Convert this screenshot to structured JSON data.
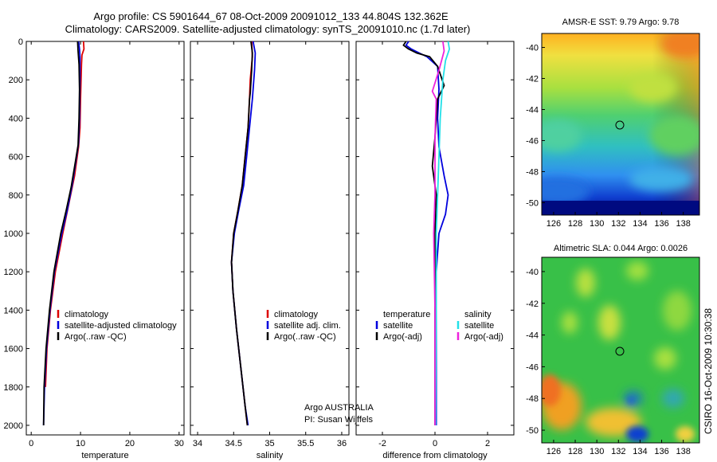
{
  "title_line1": "Argo profile: CS 5901644_67 08-Oct-2009 20091012_133 44.804S 132.362E",
  "title_line2": "Climatology: CARS2009. Satellite-adjusted climatology: synTS_20091010.nc (1.7d later)",
  "side_text": "CSIRO 16-Oct-2009 10:30:38",
  "credit_line1": "Argo AUSTRALIA",
  "credit_line2": "PI: Susan Wijffels",
  "colors": {
    "red": "#dd0000",
    "blue": "#0000dd",
    "black": "#000000",
    "cyan": "#22e0e8",
    "magenta": "#ee22dd"
  },
  "chart_data": [
    {
      "type": "line",
      "xlabel": "temperature",
      "xlim": [
        -1,
        31
      ],
      "ylim": [
        0,
        2050
      ],
      "xticks": [
        "0",
        "10",
        "20",
        "30"
      ],
      "yticks": [
        "0",
        "200",
        "400",
        "600",
        "800",
        "1000",
        "1200",
        "1400",
        "1600",
        "1800",
        "2000"
      ],
      "legend": [
        "climatology",
        "satellite-adjusted climatology",
        "Argo(..raw -QC)"
      ],
      "series": [
        {
          "name": "climatology",
          "color": "red",
          "points": [
            [
              10.6,
              0
            ],
            [
              10.7,
              40
            ],
            [
              10.3,
              70
            ],
            [
              10.2,
              120
            ],
            [
              10.0,
              300
            ],
            [
              9.9,
              450
            ],
            [
              9.6,
              550
            ],
            [
              8.8,
              700
            ],
            [
              7.6,
              850
            ],
            [
              6.4,
              1000
            ],
            [
              4.9,
              1200
            ],
            [
              3.9,
              1400
            ],
            [
              3.2,
              1600
            ],
            [
              2.9,
              1800
            ]
          ]
        },
        {
          "name": "satellite-adjusted climatology",
          "color": "blue",
          "points": [
            [
              9.6,
              0
            ],
            [
              9.8,
              40
            ],
            [
              9.9,
              80
            ],
            [
              9.9,
              200
            ],
            [
              9.8,
              400
            ],
            [
              9.6,
              530
            ],
            [
              9.2,
              600
            ],
            [
              8.3,
              750
            ],
            [
              7.3,
              880
            ],
            [
              6.2,
              1000
            ],
            [
              4.7,
              1200
            ],
            [
              3.8,
              1400
            ],
            [
              3.1,
              1600
            ],
            [
              2.7,
              1800
            ],
            [
              2.5,
              2000
            ]
          ]
        },
        {
          "name": "Argo(..raw -QC)",
          "color": "black",
          "points": [
            [
              9.4,
              0
            ],
            [
              9.5,
              50
            ],
            [
              9.7,
              120
            ],
            [
              9.8,
              250
            ],
            [
              9.7,
              400
            ],
            [
              9.5,
              540
            ],
            [
              9.0,
              620
            ],
            [
              8.1,
              760
            ],
            [
              7.1,
              880
            ],
            [
              6.0,
              1000
            ],
            [
              4.6,
              1200
            ],
            [
              3.7,
              1400
            ],
            [
              3.0,
              1600
            ],
            [
              2.6,
              1800
            ],
            [
              2.5,
              2000
            ]
          ]
        }
      ]
    },
    {
      "type": "line",
      "xlabel": "salinity",
      "xlim": [
        33.9,
        36.1
      ],
      "ylim": [
        0,
        2050
      ],
      "xticks": [
        "34",
        "34.5",
        "35",
        "35.5",
        "36"
      ],
      "legend": [
        "climatology",
        "satellite adj. clim.",
        "Argo(..raw -QC)"
      ],
      "series": [
        {
          "name": "climatology",
          "color": "red",
          "points": [
            [
              34.75,
              0
            ],
            [
              34.76,
              80
            ],
            [
              34.73,
              200
            ],
            [
              34.72,
              300
            ],
            [
              34.7,
              450
            ],
            [
              34.66,
              600
            ],
            [
              34.62,
              750
            ],
            [
              34.56,
              880
            ],
            [
              34.5,
              1000
            ],
            [
              34.47,
              1150
            ],
            [
              34.49,
              1300
            ],
            [
              34.54,
              1500
            ],
            [
              34.6,
              1700
            ],
            [
              34.66,
              1900
            ],
            [
              34.69,
              2000
            ]
          ]
        },
        {
          "name": "satellite adj. clim.",
          "color": "blue",
          "points": [
            [
              34.77,
              0
            ],
            [
              34.8,
              60
            ],
            [
              34.79,
              150
            ],
            [
              34.76,
              300
            ],
            [
              34.72,
              450
            ],
            [
              34.68,
              600
            ],
            [
              34.64,
              750
            ],
            [
              34.57,
              880
            ],
            [
              34.51,
              1000
            ],
            [
              34.47,
              1150
            ],
            [
              34.49,
              1300
            ],
            [
              34.54,
              1500
            ],
            [
              34.6,
              1700
            ],
            [
              34.66,
              1900
            ],
            [
              34.7,
              2000
            ]
          ]
        },
        {
          "name": "Argo(..raw -QC)",
          "color": "black",
          "points": [
            [
              34.74,
              0
            ],
            [
              34.76,
              60
            ],
            [
              34.75,
              150
            ],
            [
              34.73,
              270
            ],
            [
              34.72,
              300
            ],
            [
              34.7,
              450
            ],
            [
              34.66,
              600
            ],
            [
              34.62,
              750
            ],
            [
              34.56,
              880
            ],
            [
              34.5,
              1000
            ],
            [
              34.47,
              1150
            ],
            [
              34.49,
              1300
            ],
            [
              34.54,
              1500
            ],
            [
              34.6,
              1700
            ],
            [
              34.66,
              1900
            ],
            [
              34.69,
              2000
            ]
          ]
        }
      ]
    },
    {
      "type": "line",
      "xlabel": "difference from climatology",
      "xlim": [
        -3,
        3
      ],
      "ylim": [
        0,
        2050
      ],
      "xticks": [
        "-2",
        "0",
        "2"
      ],
      "legend_left_header": "temperature",
      "legend_right_header": "salinity",
      "legend_left": [
        "satellite",
        "Argo(-adj)"
      ],
      "legend_right": [
        "satellite",
        "Argo(-adj)"
      ],
      "series": [
        {
          "name": "temperature satellite",
          "color": "blue",
          "points": [
            [
              -1.0,
              0
            ],
            [
              -1.1,
              20
            ],
            [
              -0.9,
              40
            ],
            [
              -0.6,
              60
            ],
            [
              -0.3,
              80
            ],
            [
              0.1,
              130
            ],
            [
              0.15,
              250
            ],
            [
              0.1,
              400
            ],
            [
              0.15,
              550
            ],
            [
              0.35,
              700
            ],
            [
              0.5,
              800
            ],
            [
              0.4,
              900
            ],
            [
              0.15,
              1000
            ],
            [
              0.05,
              1200
            ],
            [
              0.05,
              1600
            ],
            [
              0.05,
              2000
            ]
          ]
        },
        {
          "name": "temperature Argo(-adj)",
          "color": "black",
          "points": [
            [
              -1.1,
              0
            ],
            [
              -1.2,
              20
            ],
            [
              -1.0,
              40
            ],
            [
              -0.7,
              60
            ],
            [
              -0.2,
              80
            ],
            [
              0.1,
              130
            ],
            [
              0.35,
              230
            ],
            [
              0.1,
              300
            ],
            [
              0.0,
              500
            ],
            [
              -0.1,
              650
            ],
            [
              0.05,
              800
            ],
            [
              0.0,
              1000
            ],
            [
              0.0,
              1500
            ],
            [
              0.0,
              2000
            ]
          ]
        },
        {
          "name": "salinity satellite",
          "color": "cyan",
          "points": [
            [
              0.5,
              0
            ],
            [
              0.55,
              40
            ],
            [
              0.4,
              100
            ],
            [
              0.3,
              200
            ],
            [
              0.2,
              400
            ],
            [
              0.15,
              600
            ],
            [
              0.1,
              800
            ],
            [
              0.05,
              1000
            ],
            [
              0.05,
              1400
            ],
            [
              0.03,
              1800
            ],
            [
              0.02,
              2000
            ]
          ]
        },
        {
          "name": "salinity Argo(-adj)",
          "color": "magenta",
          "points": [
            [
              0.3,
              0
            ],
            [
              0.35,
              50
            ],
            [
              0.15,
              150
            ],
            [
              -0.1,
              260
            ],
            [
              0.05,
              300
            ],
            [
              0.0,
              500
            ],
            [
              0.0,
              800
            ],
            [
              -0.05,
              1000
            ],
            [
              0.0,
              1400
            ],
            [
              0.0,
              1800
            ],
            [
              0.0,
              2000
            ]
          ]
        }
      ]
    },
    {
      "type": "heatmap",
      "title": "AMSR-E SST: 9.79  Argo: 9.78",
      "xticks": [
        "126",
        "128",
        "130",
        "132",
        "134",
        "136",
        "138"
      ],
      "yticks": [
        "-40",
        "-42",
        "-44",
        "-46",
        "-48",
        "-50"
      ],
      "marker": {
        "lon": 132.4,
        "lat": -44.8
      }
    },
    {
      "type": "heatmap",
      "title": "Altimetric SLA: 0.044  Argo: 0.0026",
      "xticks": [
        "126",
        "128",
        "130",
        "132",
        "134",
        "136",
        "138"
      ],
      "yticks": [
        "-40",
        "-42",
        "-44",
        "-46",
        "-48",
        "-50"
      ],
      "marker": {
        "lon": 132.4,
        "lat": -44.8
      }
    }
  ]
}
